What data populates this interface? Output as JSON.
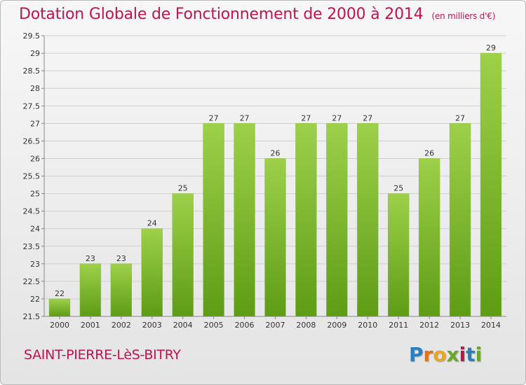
{
  "title": "Dotation Globale de Fonctionnement de 2000 à 2014",
  "subtitle": "(en milliers d'€)",
  "town": "SAINT-PIERRE-LèS-BITRY",
  "logo": {
    "letters": [
      "P",
      "r",
      "o",
      "x",
      "i",
      "t",
      "i"
    ],
    "colors": [
      "#2a7fc1",
      "#e2731b",
      "#e9a623",
      "#6aa826",
      "#c0144f",
      "#2a7fc1",
      "#6aa826"
    ]
  },
  "colors": {
    "bar_top": "#9ed04a",
    "bar_bottom": "#5e9c16",
    "grid": "#cfcfcf",
    "title": "#c0144f"
  },
  "chart_data": {
    "type": "bar",
    "title": "Dotation Globale de Fonctionnement de 2000 à 2014",
    "subtitle": "(en milliers d'€)",
    "xlabel": "",
    "ylabel": "",
    "categories": [
      "2000",
      "2001",
      "2002",
      "2003",
      "2004",
      "2005",
      "2006",
      "2007",
      "2008",
      "2009",
      "2010",
      "2011",
      "2012",
      "2013",
      "2014"
    ],
    "values": [
      22,
      23,
      23,
      24,
      25,
      27,
      27,
      26,
      27,
      27,
      27,
      25,
      26,
      27,
      29
    ],
    "labels": [
      "22",
      "23",
      "23",
      "24",
      "25",
      "27",
      "27",
      "26",
      "27",
      "27",
      "27",
      "25",
      "26",
      "27",
      "29"
    ],
    "ylim": [
      21.5,
      29.5
    ],
    "yticks": [
      21.5,
      22,
      22.5,
      23,
      23.5,
      24,
      24.5,
      25,
      25.5,
      26,
      26.5,
      27,
      27.5,
      28,
      28.5,
      29,
      29.5
    ],
    "ytick_labels": [
      "21.5",
      "22",
      "22.5",
      "23",
      "23.5",
      "24",
      "24.5",
      "25",
      "25.5",
      "26",
      "26.5",
      "27",
      "27.5",
      "28",
      "28.5",
      "29",
      "29.5"
    ],
    "grid": true,
    "legend": "none"
  }
}
